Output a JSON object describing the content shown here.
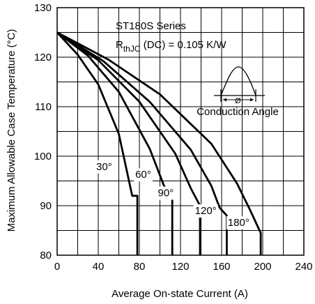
{
  "chart_data": {
    "type": "line",
    "xlabel": "Average On-state Current (A)",
    "ylabel": "Maximum Allowable Case Temperature (°C)",
    "xlim": [
      0,
      240
    ],
    "ylim": [
      80,
      130
    ],
    "x_ticks": [
      "0",
      "40",
      "80",
      "120",
      "160",
      "200",
      "240"
    ],
    "y_ticks": [
      "80",
      "90",
      "100",
      "110",
      "120",
      "130"
    ],
    "grid": true,
    "annotations": {
      "series_title": "ST180S Series",
      "rth_main": "R",
      "rth_sub": "thJC",
      "rth_rest": " (DC) = 0.105 K/W",
      "inset_symbol": "Ø",
      "inset_label": "Conduction Angle"
    },
    "series": [
      {
        "name": "30°",
        "points": [
          [
            0,
            125
          ],
          [
            20,
            120.5
          ],
          [
            40,
            114.5
          ],
          [
            60,
            104.5
          ],
          [
            73,
            92
          ],
          [
            78,
            92
          ],
          [
            78,
            80
          ]
        ]
      },
      {
        "name": "60°",
        "points": [
          [
            0,
            125
          ],
          [
            30,
            120.3
          ],
          [
            60,
            113
          ],
          [
            90,
            101.5
          ],
          [
            104,
            94
          ],
          [
            112,
            91.6
          ],
          [
            112,
            80
          ]
        ]
      },
      {
        "name": "90°",
        "points": [
          [
            0,
            125
          ],
          [
            40,
            119.4
          ],
          [
            80,
            111
          ],
          [
            115,
            100.5
          ],
          [
            130,
            93.5
          ],
          [
            139,
            90
          ],
          [
            139,
            80
          ]
        ]
      },
      {
        "name": "120°",
        "points": [
          [
            0,
            125
          ],
          [
            45,
            119.2
          ],
          [
            90,
            111
          ],
          [
            130,
            101.3
          ],
          [
            150,
            94
          ],
          [
            158,
            89.6
          ],
          [
            165,
            88
          ],
          [
            165,
            80
          ]
        ]
      },
      {
        "name": "180°",
        "points": [
          [
            0,
            125
          ],
          [
            50,
            119.5
          ],
          [
            100,
            112.5
          ],
          [
            150,
            102.5
          ],
          [
            175,
            94.5
          ],
          [
            188,
            89
          ],
          [
            198,
            84.5
          ],
          [
            198,
            80
          ]
        ]
      }
    ]
  }
}
